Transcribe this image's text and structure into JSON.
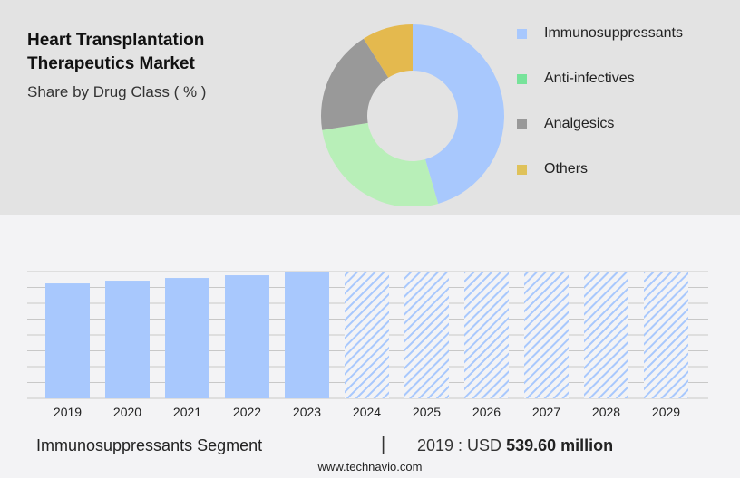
{
  "header": {
    "title": "Heart Transplantation Therapeutics Market",
    "subtitle": "Share by Drug Class ( % )"
  },
  "chart_data": [
    {
      "type": "pie",
      "donut": true,
      "categories": [
        "Immunosuppressants",
        "Anti-infectives",
        "Analgesics",
        "Others"
      ],
      "values": [
        45.5,
        27,
        18.5,
        9
      ],
      "colors": [
        "#a8c8fd",
        "#b8efb8",
        "#999999",
        "#e4b94e"
      ],
      "legend_colors": [
        "#a8c8fd",
        "#77e39a",
        "#999999",
        "#dfc25a"
      ],
      "legend": "right"
    },
    {
      "type": "bar",
      "categories": [
        "2019",
        "2020",
        "2021",
        "2022",
        "2023",
        "2024",
        "2025",
        "2026",
        "2027",
        "2028",
        "2029"
      ],
      "values": [
        539.6,
        552.3,
        565.1,
        577.9,
        594.9,
        null,
        null,
        null,
        null,
        null,
        null
      ],
      "forecast_from": "2024",
      "color": "#a8c8fd",
      "grid": true,
      "ylim": [
        0,
        595
      ]
    }
  ],
  "footer": {
    "segment": "Immunosuppressants Segment",
    "separator": "|",
    "year_label": "2019 : USD ",
    "value": "539.60 million",
    "site": "www.technavio.com"
  }
}
